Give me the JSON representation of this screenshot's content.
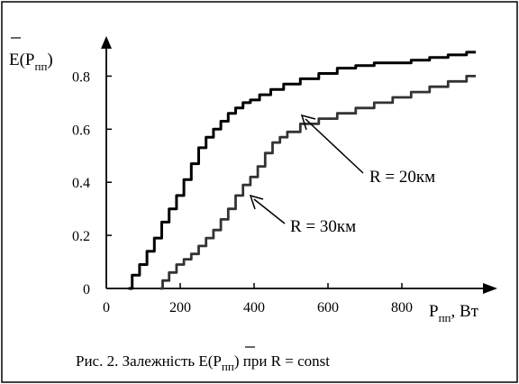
{
  "chart_data": {
    "type": "line",
    "ylabel": {
      "main": "E(P",
      "sub": "пп",
      "close": ")"
    },
    "xlabel": {
      "main": "P",
      "sub": "пп",
      "unit": ",   Вт"
    },
    "xlim": [
      0,
      1000
    ],
    "ylim": [
      0,
      0.9
    ],
    "x_ticks": [
      0,
      200,
      400,
      600,
      800
    ],
    "x_tick_labels": [
      "0",
      "200",
      "400",
      "600",
      "800"
    ],
    "y_ticks": [
      0,
      0.2,
      0.4,
      0.6,
      0.8
    ],
    "y_tick_labels": [
      "0",
      "0.2",
      "0.4",
      "0.6",
      "0.8"
    ],
    "grid": false,
    "series": [
      {
        "name": "R = 20км",
        "color": "#000000",
        "x": [
          60,
          80,
          100,
          120,
          140,
          160,
          180,
          200,
          220,
          240,
          260,
          280,
          300,
          320,
          340,
          360,
          380,
          400,
          430,
          460,
          500,
          550,
          600,
          650,
          700,
          750,
          800,
          850,
          900,
          950,
          1000
        ],
        "y": [
          0.0,
          0.05,
          0.09,
          0.14,
          0.19,
          0.25,
          0.3,
          0.35,
          0.41,
          0.47,
          0.53,
          0.57,
          0.6,
          0.63,
          0.66,
          0.68,
          0.7,
          0.71,
          0.73,
          0.75,
          0.77,
          0.79,
          0.81,
          0.83,
          0.84,
          0.85,
          0.85,
          0.86,
          0.87,
          0.88,
          0.89
        ]
      },
      {
        "name": "R = 30км",
        "color": "#333333",
        "x": [
          145,
          160,
          180,
          200,
          220,
          240,
          260,
          280,
          300,
          320,
          340,
          360,
          380,
          400,
          420,
          440,
          460,
          480,
          500,
          550,
          600,
          650,
          700,
          750,
          800,
          850,
          900,
          950,
          1000
        ],
        "y": [
          0.0,
          0.03,
          0.06,
          0.09,
          0.11,
          0.13,
          0.16,
          0.19,
          0.22,
          0.26,
          0.3,
          0.35,
          0.39,
          0.42,
          0.46,
          0.51,
          0.55,
          0.57,
          0.59,
          0.62,
          0.64,
          0.66,
          0.68,
          0.7,
          0.72,
          0.74,
          0.76,
          0.78,
          0.8
        ]
      }
    ],
    "annotations": [
      {
        "text": "R = 20км",
        "points_to": [
          520,
          0.76
        ]
      },
      {
        "text": "R = 30км",
        "points_to": [
          300,
          0.38
        ]
      }
    ]
  },
  "caption": {
    "prefix": "Рис. 2. Залежність ",
    "e_main": "E(P",
    "e_sub": "пп",
    "e_close": ")",
    "suffix": "  при  R = const"
  }
}
